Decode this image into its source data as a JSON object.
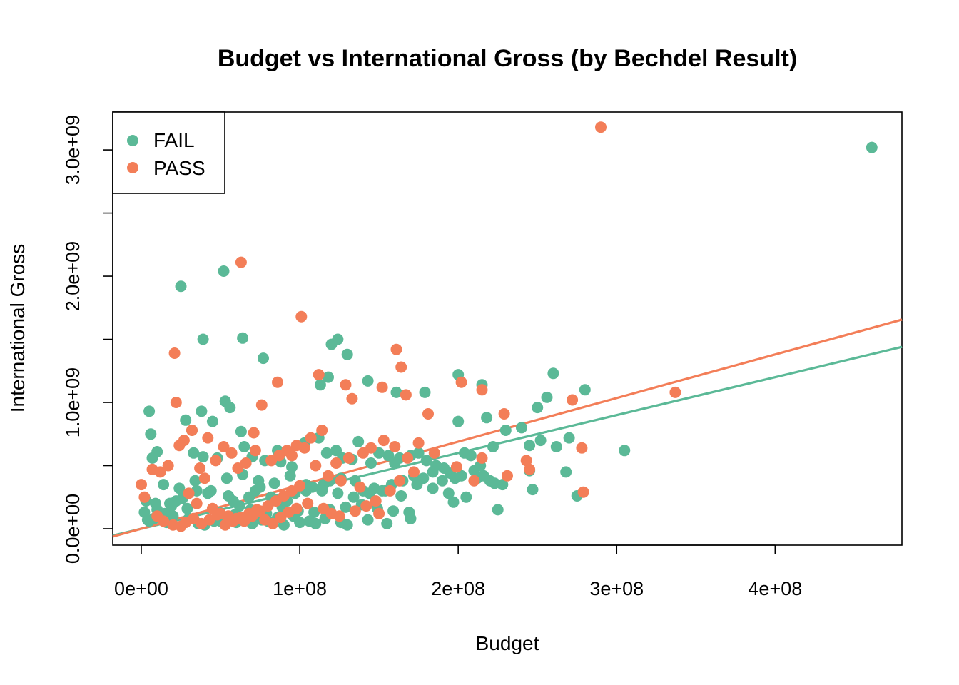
{
  "chart_data": {
    "type": "scatter",
    "title": "Budget vs International Gross (by Bechdel Result)",
    "xlabel": "Budget",
    "ylabel": "International Gross",
    "xlim": [
      -18000000,
      480000000
    ],
    "ylim": [
      -130000000,
      3300000000
    ],
    "x_ticks": [
      0,
      100000000,
      200000000,
      300000000,
      400000000
    ],
    "x_tick_labels": [
      "0e+00",
      "1e+08",
      "2e+08",
      "3e+08",
      "4e+08"
    ],
    "y_ticks": [
      0,
      500000000,
      1000000000,
      1500000000,
      2000000000,
      2500000000,
      3000000000
    ],
    "y_tick_labels": [
      "0.0e+00",
      "",
      "1.0e+09",
      "",
      "2.0e+09",
      "",
      "3.0e+09"
    ],
    "legend_position": "top-left",
    "colors": {
      "FAIL": "#5BB997",
      "PASS": "#F37E58"
    },
    "series": [
      {
        "name": "FAIL",
        "color": "#5BB997",
        "regression": {
          "slope": 3.0,
          "intercept": 0
        },
        "x": [
          461000000,
          52000000,
          25000000,
          39000000,
          64000000,
          77000000,
          124000000,
          130000000,
          120000000,
          118000000,
          200000000,
          260000000,
          280000000,
          250000000,
          256000000,
          215000000,
          113000000,
          143000000,
          161000000,
          179000000,
          218000000,
          5000000,
          6000000,
          10000000,
          7000000,
          53000000,
          56000000,
          38000000,
          45000000,
          28000000,
          32000000,
          33000000,
          39000000,
          48000000,
          63000000,
          65000000,
          70000000,
          78000000,
          86000000,
          88000000,
          95000000,
          103000000,
          112000000,
          117000000,
          123000000,
          127000000,
          133000000,
          137000000,
          145000000,
          150000000,
          156000000,
          160000000,
          163000000,
          170000000,
          175000000,
          180000000,
          186000000,
          191000000,
          195000000,
          200000000,
          204000000,
          208000000,
          212000000,
          216000000,
          220000000,
          223000000,
          228000000,
          245000000,
          247000000,
          268000000,
          275000000,
          305000000,
          245000000,
          225000000,
          205000000,
          197000000,
          170000000,
          155000000,
          143000000,
          130000000,
          110000000,
          100000000,
          90000000,
          80000000,
          70000000,
          60000000,
          50000000,
          40000000,
          30000000,
          20000000,
          15000000,
          12000000,
          8000000,
          5000000,
          3000000,
          2000000,
          10000000,
          18000000,
          22000000,
          26000000,
          35000000,
          42000000,
          55000000,
          58000000,
          62000000,
          68000000,
          72000000,
          75000000,
          82000000,
          85000000,
          92000000,
          97000000,
          104000000,
          108000000,
          115000000,
          119000000,
          126000000,
          135000000,
          140000000,
          147000000,
          152000000,
          158000000,
          165000000,
          172000000,
          178000000,
          184000000,
          190000000,
          198000000,
          202000000,
          210000000,
          214000000,
          222000000,
          230000000,
          240000000,
          252000000,
          262000000,
          270000000,
          14000000,
          24000000,
          34000000,
          44000000,
          54000000,
          64000000,
          74000000,
          84000000,
          94000000,
          104000000,
          114000000,
          124000000,
          134000000,
          144000000,
          154000000,
          164000000,
          174000000,
          184000000,
          194000000,
          9000000,
          19000000,
          29000000,
          49000000,
          59000000,
          69000000,
          79000000,
          89000000,
          99000000,
          109000000,
          119000000,
          129000000,
          139000000,
          149000000,
          159000000,
          169000000,
          4000000,
          16000000,
          36000000,
          46000000,
          66000000,
          76000000,
          86000000,
          96000000,
          106000000,
          116000000,
          126000000
        ],
        "y": [
          3020000000,
          2040000000,
          1920000000,
          1500000000,
          1510000000,
          1350000000,
          1500000000,
          1380000000,
          1460000000,
          1200000000,
          1220000000,
          1230000000,
          1100000000,
          960000000,
          1040000000,
          1140000000,
          1140000000,
          1170000000,
          1080000000,
          1080000000,
          880000000,
          930000000,
          750000000,
          610000000,
          560000000,
          1010000000,
          960000000,
          930000000,
          850000000,
          860000000,
          780000000,
          600000000,
          570000000,
          560000000,
          770000000,
          650000000,
          570000000,
          540000000,
          620000000,
          530000000,
          490000000,
          680000000,
          720000000,
          600000000,
          620000000,
          560000000,
          550000000,
          690000000,
          520000000,
          600000000,
          580000000,
          520000000,
          560000000,
          580000000,
          600000000,
          540000000,
          500000000,
          480000000,
          440000000,
          850000000,
          600000000,
          580000000,
          400000000,
          420000000,
          380000000,
          360000000,
          350000000,
          460000000,
          310000000,
          450000000,
          260000000,
          620000000,
          660000000,
          150000000,
          250000000,
          210000000,
          80000000,
          40000000,
          70000000,
          30000000,
          40000000,
          50000000,
          30000000,
          60000000,
          40000000,
          50000000,
          60000000,
          30000000,
          80000000,
          100000000,
          120000000,
          90000000,
          80000000,
          60000000,
          220000000,
          130000000,
          150000000,
          200000000,
          220000000,
          240000000,
          300000000,
          280000000,
          260000000,
          220000000,
          180000000,
          250000000,
          300000000,
          330000000,
          250000000,
          230000000,
          220000000,
          280000000,
          300000000,
          330000000,
          350000000,
          380000000,
          400000000,
          380000000,
          300000000,
          320000000,
          300000000,
          350000000,
          380000000,
          420000000,
          400000000,
          450000000,
          380000000,
          400000000,
          420000000,
          460000000,
          500000000,
          650000000,
          780000000,
          800000000,
          700000000,
          650000000,
          720000000,
          350000000,
          320000000,
          380000000,
          300000000,
          400000000,
          430000000,
          380000000,
          360000000,
          420000000,
          350000000,
          300000000,
          280000000,
          250000000,
          280000000,
          300000000,
          260000000,
          350000000,
          320000000,
          280000000,
          200000000,
          180000000,
          160000000,
          130000000,
          110000000,
          150000000,
          120000000,
          170000000,
          140000000,
          130000000,
          150000000,
          170000000,
          190000000,
          160000000,
          140000000,
          130000000,
          70000000,
          50000000,
          40000000,
          60000000,
          80000000,
          70000000,
          90000000,
          100000000,
          60000000,
          80000000,
          50000000
        ]
      },
      {
        "name": "PASS",
        "color": "#F37E58",
        "regression": {
          "slope": 3.45,
          "intercept": 0
        },
        "x": [
          290000000,
          63000000,
          101000000,
          21000000,
          161000000,
          164000000,
          112000000,
          129000000,
          152000000,
          133000000,
          167000000,
          181000000,
          202000000,
          215000000,
          229000000,
          272000000,
          337000000,
          278000000,
          279000000,
          243000000,
          245000000,
          231000000,
          210000000,
          215000000,
          199000000,
          185000000,
          175000000,
          168000000,
          160000000,
          153000000,
          145000000,
          140000000,
          131000000,
          123000000,
          114000000,
          107000000,
          98000000,
          92000000,
          87000000,
          82000000,
          76000000,
          71000000,
          66000000,
          61000000,
          57000000,
          52000000,
          47000000,
          42000000,
          37000000,
          32000000,
          27000000,
          22000000,
          17000000,
          12000000,
          7000000,
          0,
          2000000,
          24000000,
          40000000,
          86000000,
          72000000,
          95000000,
          103000000,
          110000000,
          118000000,
          126000000,
          138000000,
          148000000,
          157000000,
          163000000,
          172000000,
          30000000,
          35000000,
          45000000,
          50000000,
          55000000,
          60000000,
          65000000,
          70000000,
          75000000,
          80000000,
          85000000,
          90000000,
          95000000,
          100000000,
          105000000,
          115000000,
          120000000,
          125000000,
          135000000,
          142000000,
          150000000,
          10000000,
          14000000,
          20000000,
          25000000,
          28000000,
          33000000,
          38000000,
          43000000,
          48000000,
          53000000,
          58000000,
          63000000,
          68000000,
          73000000,
          78000000,
          83000000,
          88000000,
          93000000,
          98000000
        ],
        "y": [
          3180000000,
          2110000000,
          1680000000,
          1390000000,
          1420000000,
          1280000000,
          1220000000,
          1140000000,
          1120000000,
          1030000000,
          1060000000,
          910000000,
          1160000000,
          1100000000,
          910000000,
          1020000000,
          1080000000,
          640000000,
          290000000,
          540000000,
          470000000,
          420000000,
          380000000,
          560000000,
          490000000,
          600000000,
          680000000,
          560000000,
          650000000,
          700000000,
          640000000,
          600000000,
          560000000,
          520000000,
          780000000,
          720000000,
          660000000,
          620000000,
          580000000,
          540000000,
          980000000,
          760000000,
          520000000,
          480000000,
          600000000,
          650000000,
          540000000,
          720000000,
          480000000,
          780000000,
          700000000,
          1000000000,
          500000000,
          450000000,
          470000000,
          350000000,
          250000000,
          660000000,
          400000000,
          1160000000,
          620000000,
          580000000,
          640000000,
          500000000,
          420000000,
          380000000,
          330000000,
          220000000,
          300000000,
          380000000,
          450000000,
          280000000,
          200000000,
          160000000,
          120000000,
          100000000,
          80000000,
          60000000,
          100000000,
          140000000,
          180000000,
          220000000,
          260000000,
          300000000,
          340000000,
          200000000,
          160000000,
          120000000,
          100000000,
          140000000,
          180000000,
          120000000,
          100000000,
          60000000,
          30000000,
          20000000,
          50000000,
          80000000,
          40000000,
          70000000,
          110000000,
          30000000,
          60000000,
          90000000,
          120000000,
          150000000,
          70000000,
          40000000,
          90000000,
          130000000,
          160000000
        ]
      }
    ]
  }
}
